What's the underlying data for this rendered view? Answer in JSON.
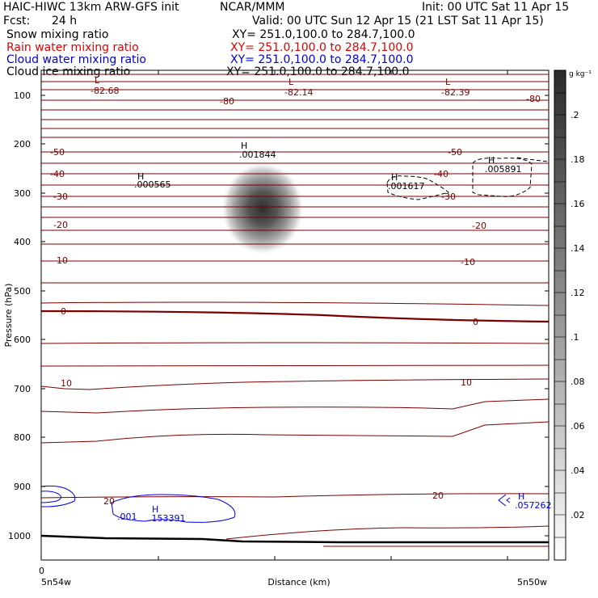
{
  "header": {
    "title_left": "HAIC-HIWC 13km ARW-GFS init",
    "title_mid": "NCAR/MMM",
    "init": "Init: 00 UTC Sat 11 Apr 15",
    "fcst_label": "Fcst:",
    "fcst_value": "24 h",
    "valid": "Valid: 00 UTC Sun 12 Apr 15 (21 LST Sat 11 Apr 15)"
  },
  "legend_rows": [
    {
      "name": "Snow mixing ratio",
      "xy": "XY= 251.0,100.0 to 284.7,100.0",
      "color": "#000000"
    },
    {
      "name": "Rain water mixing ratio",
      "xy": "XY= 251.0,100.0 to 284.7,100.0",
      "color": "#e00000"
    },
    {
      "name": "Cloud water mixing ratio",
      "xy": "XY= 251.0,100.0 to 284.7,100.0",
      "color": "#0000dd"
    },
    {
      "name": "Cloud ice mixing ratio",
      "xy": "XY= 251.0,100.0 to 284.7,100.0",
      "color": "#000000"
    }
  ],
  "chart_data": {
    "type": "contour",
    "ylabel": "Pressure (hPa)",
    "xlabel": "Distance (km)",
    "x_origin_label": "0",
    "x_left_label": "5n54w",
    "x_right_label": "5n50w",
    "y_ticks": [
      "100",
      "200",
      "300",
      "400",
      "500",
      "600",
      "700",
      "800",
      "900",
      "1000"
    ],
    "colorbar": {
      "unit": "g kg⁻¹",
      "ticks": [
        ".02",
        ".04",
        ".06",
        ".08",
        ".1",
        ".12",
        ".14",
        ".16",
        ".18",
        ".2"
      ]
    },
    "temperature_contour_labels": [
      "-80",
      "-50",
      "-40",
      "-30",
      "-20",
      "-10",
      "0",
      "10",
      "20"
    ],
    "temperature_labels_left": [
      "-50",
      "-40",
      "-30",
      "-20",
      "-10",
      "0",
      "10",
      "20"
    ],
    "temperature_labels_right": [
      "-80",
      "-50",
      "-40",
      "-30",
      "-20",
      "-10",
      "0",
      "10",
      "20"
    ],
    "lows": [
      {
        "label": "L",
        "value": "-82.68"
      },
      {
        "label": "L",
        "value": "-82.14"
      },
      {
        "label": "L",
        "value": "-82.39"
      }
    ],
    "highs": [
      {
        "label": "H",
        "value": ".001844"
      },
      {
        "label": "H",
        "value": ".000565"
      },
      {
        "label": "H",
        "value": ".001617"
      },
      {
        "label": "H",
        "value": ".005891"
      }
    ],
    "cloud_water_labels": [
      {
        "label": "H",
        "value": ".153391"
      },
      {
        "label": "",
        "value": ".001"
      },
      {
        "label": "H",
        "value": ".057262"
      }
    ],
    "colors": {
      "temperature": "#7a0000",
      "cloud_water": "#0000dd",
      "ground": "#000000"
    }
  }
}
